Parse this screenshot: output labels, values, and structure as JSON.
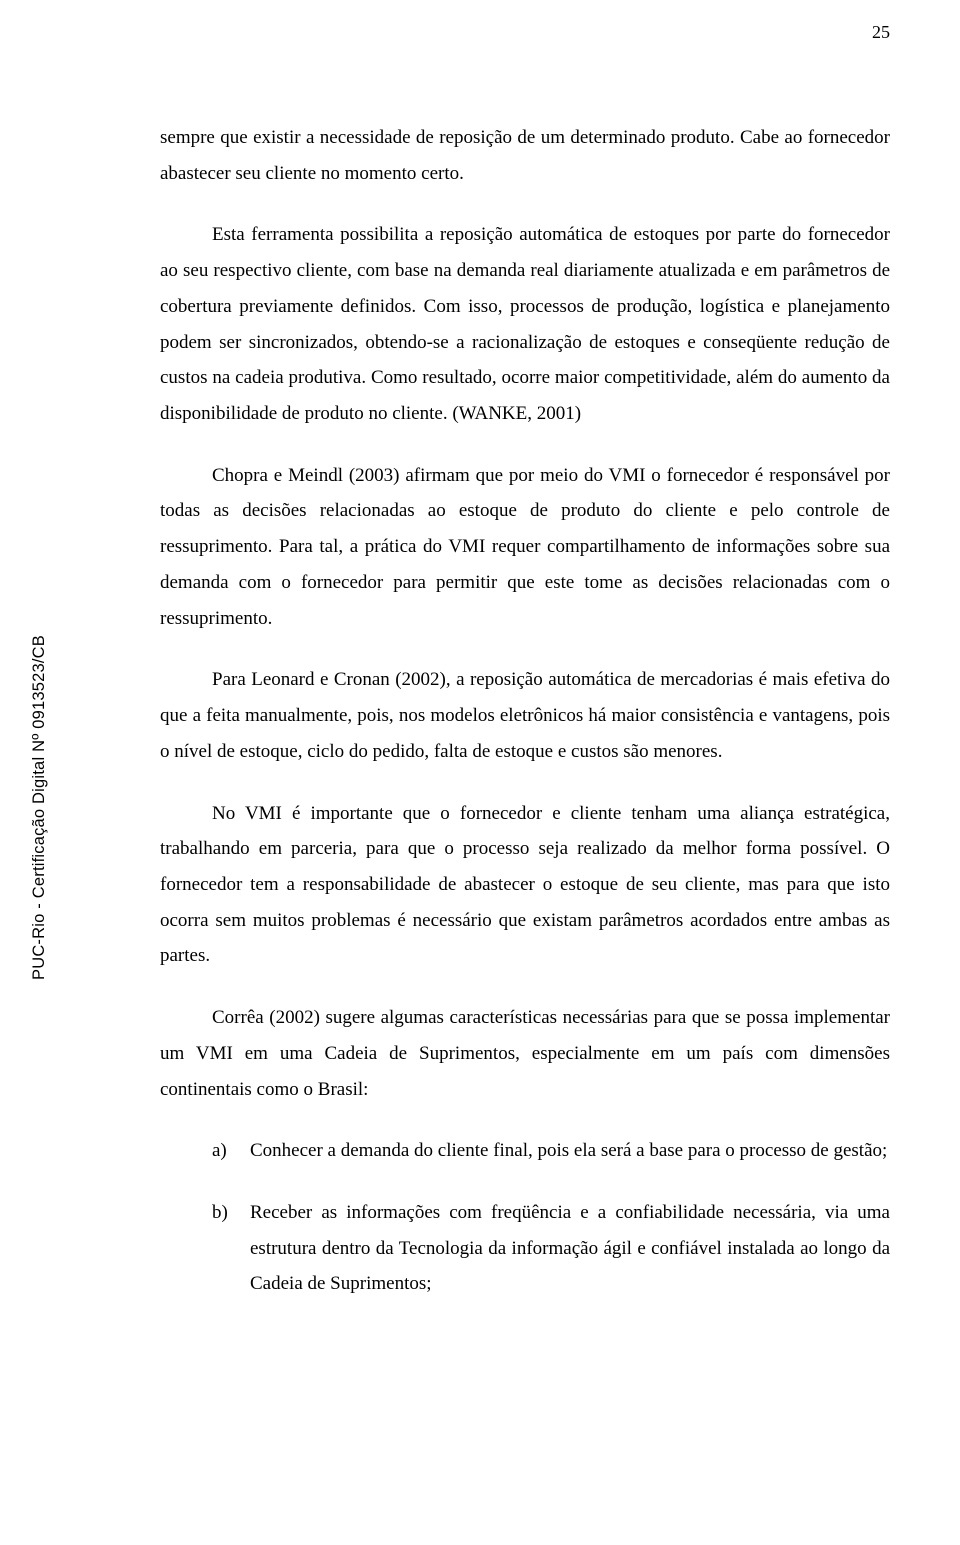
{
  "page": {
    "number": "25"
  },
  "sidebar": {
    "stamp": "PUC-Rio - Certificação Digital Nº 0913523/CB"
  },
  "paragraphs": {
    "p1": "sempre que existir a necessidade de reposição de um determinado produto. Cabe ao fornecedor abastecer seu cliente no momento certo.",
    "p2": "Esta ferramenta possibilita a reposição automática de estoques por parte do fornecedor ao seu respectivo cliente, com base na demanda real diariamente atualizada e em parâmetros de cobertura previamente definidos. Com isso, processos de produção, logística e planejamento podem ser sincronizados, obtendo-se a racionalização de estoques e conseqüente redução de custos na cadeia produtiva. Como resultado, ocorre maior competitividade, além do aumento da disponibilidade de produto no cliente. (WANKE, 2001)",
    "p3": "Chopra e Meindl (2003) afirmam que por meio do VMI o fornecedor é responsável por todas as decisões relacionadas ao estoque de produto do cliente e pelo controle de ressuprimento. Para tal, a prática do VMI requer compartilhamento de informações sobre sua demanda com o fornecedor para permitir que este tome as decisões relacionadas com o ressuprimento.",
    "p4": "Para Leonard e Cronan (2002), a reposição automática de mercadorias é mais efetiva do que a feita manualmente, pois, nos modelos eletrônicos há maior consistência e vantagens, pois o nível de estoque, ciclo do pedido, falta de estoque e custos são menores.",
    "p5": "No VMI é importante que o fornecedor e cliente tenham uma aliança estratégica, trabalhando em parceria, para que o processo seja realizado da melhor forma possível. O fornecedor tem a responsabilidade de abastecer o estoque de seu cliente, mas para que isto ocorra sem muitos problemas é necessário que existam parâmetros acordados entre ambas as partes.",
    "p6": "Corrêa (2002) sugere algumas características necessárias para que se possa implementar um VMI em uma Cadeia de Suprimentos, especialmente em um país com dimensões continentais como o Brasil:"
  },
  "list": {
    "a": {
      "marker": "a)",
      "text": "Conhecer a demanda do cliente final, pois ela será a base para o processo de gestão;"
    },
    "b": {
      "marker": "b)",
      "text": "Receber as informações com freqüência e a confiabilidade necessária, via uma estrutura dentro da Tecnologia da informação ágil e confiável instalada ao longo da Cadeia de Suprimentos;"
    }
  }
}
